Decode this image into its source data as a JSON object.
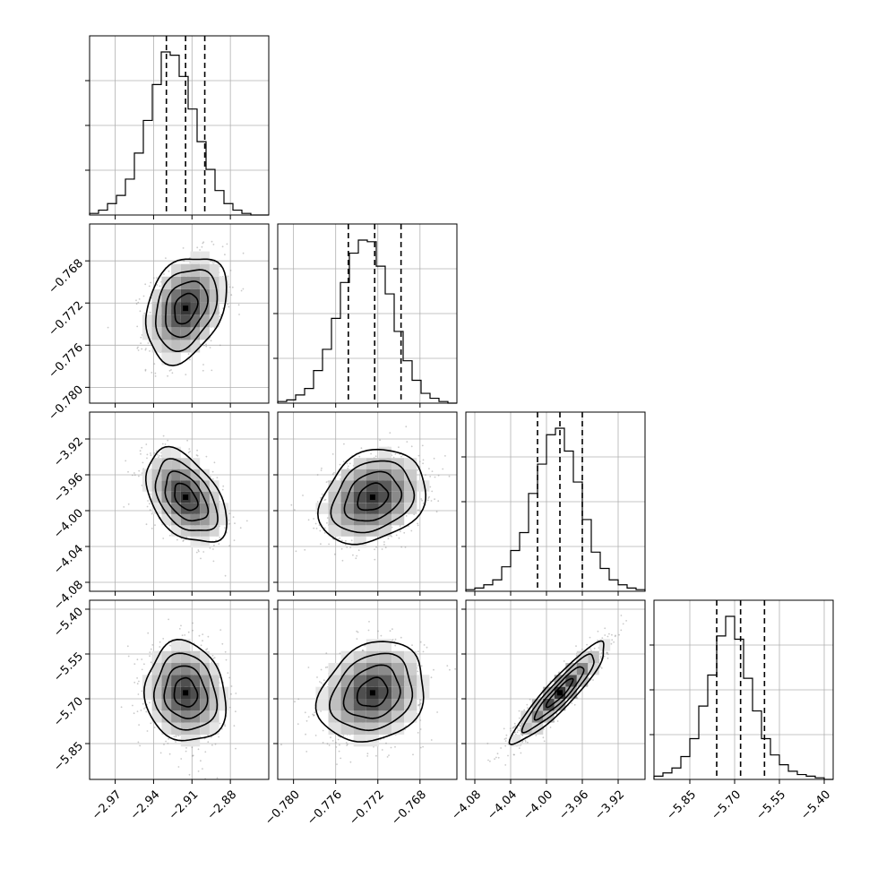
{
  "chart_data": {
    "type": "corner",
    "grid": true,
    "params": [
      {
        "mean": -2.915,
        "sigma": 0.015,
        "range": [
          -2.99,
          -2.85
        ],
        "ticks": [
          -2.97,
          -2.94,
          -2.91,
          -2.88
        ],
        "tick_labels": [
          "−2.97",
          "−2.94",
          "−2.91",
          "−2.88"
        ],
        "quantiles": [
          -2.93,
          -2.915,
          -2.9
        ],
        "hist": [
          1,
          3,
          7,
          12,
          22,
          38,
          58,
          80,
          100,
          98,
          85,
          65,
          45,
          28,
          15,
          7,
          3,
          1,
          0,
          0
        ]
      },
      {
        "mean": -0.7725,
        "sigma": 0.0024,
        "range": [
          -0.7815,
          -0.7645
        ],
        "ticks": [
          -0.78,
          -0.776,
          -0.772,
          -0.768
        ],
        "tick_labels": [
          "−0.780",
          "−0.776",
          "−0.772",
          "−0.768"
        ],
        "quantiles": [
          -0.7748,
          -0.7723,
          -0.7698
        ],
        "hist": [
          1,
          2,
          5,
          9,
          20,
          33,
          52,
          74,
          92,
          100,
          99,
          84,
          67,
          44,
          26,
          14,
          6,
          3,
          1,
          0
        ]
      },
      {
        "mean": -3.985,
        "sigma": 0.025,
        "range": [
          -4.09,
          -3.89
        ],
        "ticks": [
          -4.08,
          -4.04,
          -4.0,
          -3.96,
          -3.92
        ],
        "tick_labels": [
          "−4.08",
          "−4.04",
          "−4.00",
          "−3.96",
          "−3.92"
        ],
        "quantiles": [
          -4.01,
          -3.985,
          -3.96
        ],
        "hist": [
          1,
          2,
          4,
          7,
          15,
          25,
          36,
          60,
          78,
          96,
          100,
          86,
          67,
          44,
          24,
          14,
          7,
          4,
          2,
          1
        ]
      },
      {
        "mean": -5.68,
        "sigma": 0.08,
        "range": [
          -5.97,
          -5.37
        ],
        "ticks": [
          -5.85,
          -5.7,
          -5.55,
          -5.4
        ],
        "tick_labels": [
          "−5.85",
          "−5.70",
          "−5.55",
          "−5.40"
        ],
        "quantiles": [
          -5.76,
          -5.68,
          -5.6
        ],
        "hist": [
          2,
          4,
          7,
          14,
          25,
          45,
          64,
          88,
          100,
          86,
          62,
          42,
          25,
          15,
          9,
          5,
          3,
          2,
          1,
          0
        ]
      }
    ],
    "correlations": [
      [
        1,
        0.3,
        -0.45,
        -0.1
      ],
      [
        0.3,
        1,
        0.25,
        0.2
      ],
      [
        -0.45,
        0.25,
        1,
        0.92
      ],
      [
        -0.1,
        0.2,
        0.92,
        1
      ]
    ]
  }
}
